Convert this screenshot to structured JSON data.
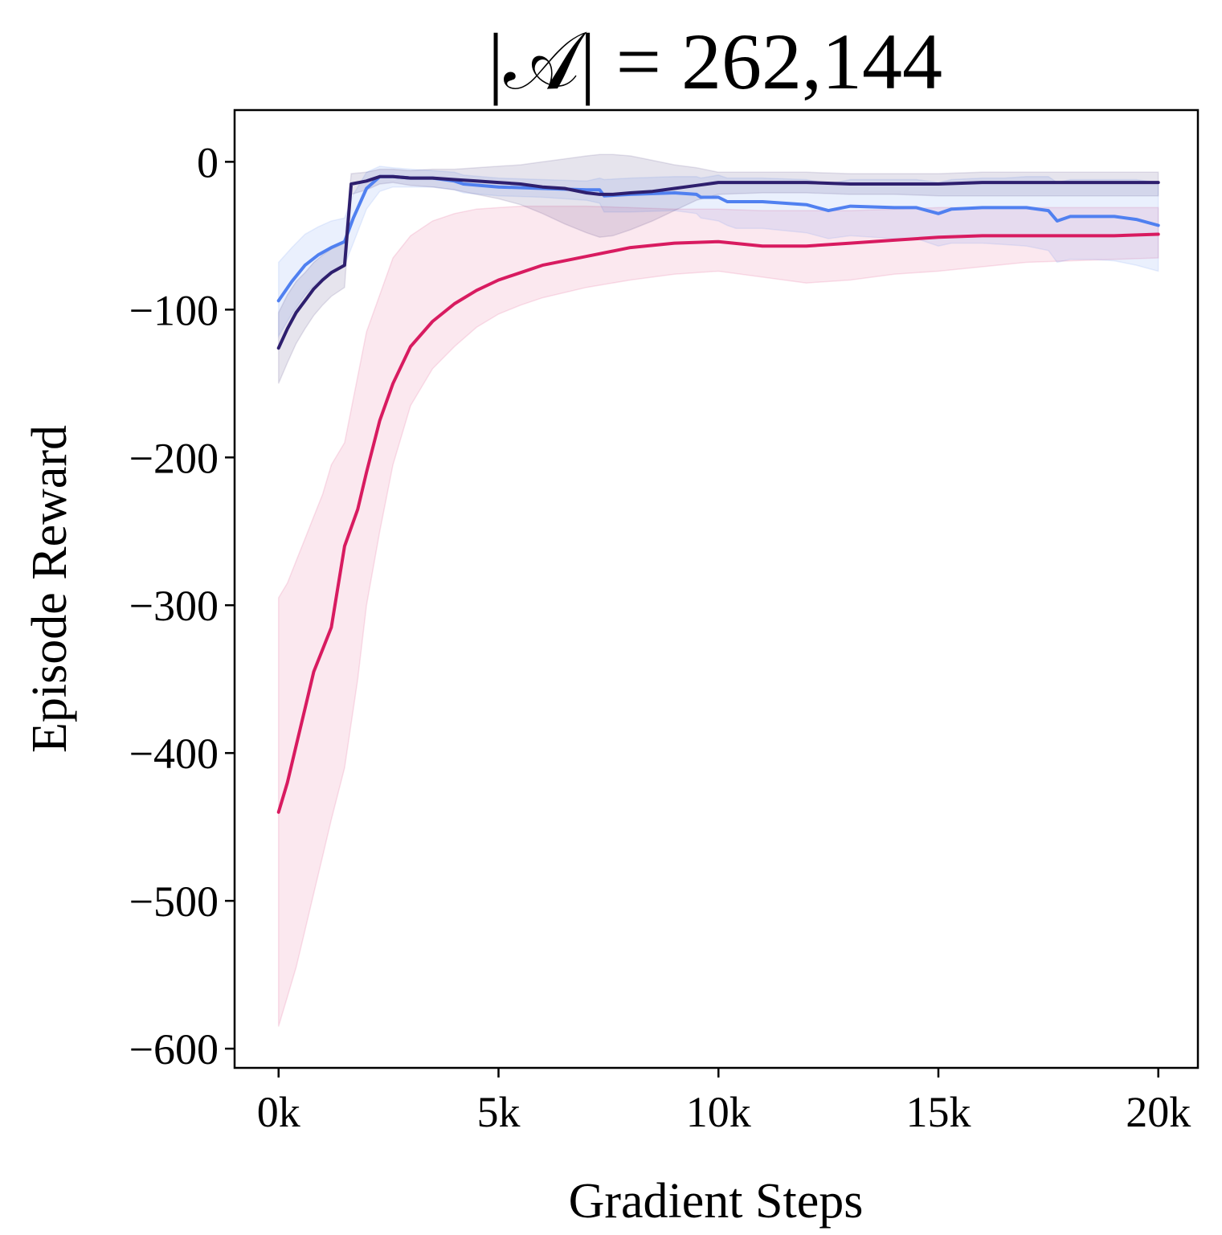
{
  "chart_data": {
    "type": "line",
    "title": "|𝒜| =  262,144",
    "xlabel": "Gradient Steps",
    "ylabel": "Episode Reward",
    "xlim": [
      -1000,
      20900
    ],
    "ylim": [
      -613,
      35
    ],
    "xticks": [
      {
        "value": 0,
        "label": "0k"
      },
      {
        "value": 5000,
        "label": "5k"
      },
      {
        "value": 10000,
        "label": "10k"
      },
      {
        "value": 15000,
        "label": "15k"
      },
      {
        "value": 20000,
        "label": "20k"
      }
    ],
    "yticks": [
      {
        "value": 0,
        "label": "0"
      },
      {
        "value": -100,
        "label": "−100"
      },
      {
        "value": -200,
        "label": "−200"
      },
      {
        "value": -300,
        "label": "−300"
      },
      {
        "value": -400,
        "label": "−400"
      },
      {
        "value": -500,
        "label": "−500"
      },
      {
        "value": -600,
        "label": "−600"
      }
    ],
    "grid": false,
    "legend": "none",
    "series": [
      {
        "color": "#d81b60",
        "fill_opacity": 0.1,
        "x": [
          0,
          200,
          400,
          600,
          800,
          1000,
          1200,
          1500,
          1800,
          2000,
          2300,
          2600,
          3000,
          3500,
          4000,
          4500,
          5000,
          5500,
          6000,
          7000,
          8000,
          9000,
          10000,
          11000,
          12000,
          13000,
          14000,
          15000,
          16000,
          17000,
          18000,
          19000,
          20000
        ],
        "y": [
          -440,
          -420,
          -395,
          -370,
          -345,
          -330,
          -315,
          -260,
          -235,
          -210,
          -175,
          -150,
          -125,
          -108,
          -96,
          -87,
          -80,
          -75,
          -70,
          -64,
          -58,
          -55,
          -54,
          -57,
          -57,
          -55,
          -53,
          -51,
          -50,
          -50,
          -50,
          -50,
          -49
        ],
        "lower": [
          -585,
          -565,
          -545,
          -520,
          -495,
          -470,
          -445,
          -410,
          -350,
          -300,
          -250,
          -205,
          -165,
          -140,
          -125,
          -112,
          -103,
          -97,
          -92,
          -85,
          -80,
          -76,
          -74,
          -78,
          -82,
          -80,
          -76,
          -74,
          -71,
          -68,
          -67,
          -66,
          -65
        ],
        "upper": [
          -295,
          -285,
          -270,
          -255,
          -240,
          -225,
          -205,
          -190,
          -145,
          -115,
          -90,
          -65,
          -50,
          -40,
          -35,
          -32,
          -31,
          -30,
          -30,
          -30,
          -31,
          -32,
          -32,
          -33,
          -33,
          -33,
          -32,
          -31,
          -31,
          -31,
          -31,
          -31,
          -31
        ]
      },
      {
        "color": "#5080f0",
        "fill_opacity": 0.12,
        "x": [
          0,
          300,
          600,
          900,
          1200,
          1500,
          1700,
          2000,
          2300,
          2600,
          3000,
          3500,
          4000,
          4200,
          5000,
          6000,
          7000,
          7300,
          7400,
          8000,
          9000,
          9500,
          9600,
          10000,
          10200,
          10400,
          11000,
          12000,
          12500,
          13000,
          14000,
          14500,
          15000,
          15300,
          16000,
          16500,
          17000,
          17500,
          17700,
          18000,
          18500,
          19000,
          19500,
          20000
        ],
        "y": [
          -94,
          -81,
          -70,
          -63,
          -58,
          -54,
          -38,
          -18,
          -10,
          -10,
          -11,
          -11,
          -13,
          -15,
          -17,
          -18,
          -19,
          -19,
          -23,
          -22,
          -21,
          -22,
          -24,
          -24,
          -27,
          -27,
          -27,
          -29,
          -33,
          -30,
          -31,
          -31,
          -35,
          -32,
          -31,
          -31,
          -31,
          -33,
          -40,
          -37,
          -37,
          -37,
          -39,
          -43
        ],
        "lower": [
          -118,
          -103,
          -90,
          -81,
          -74,
          -70,
          -55,
          -32,
          -20,
          -17,
          -17,
          -17,
          -19,
          -21,
          -23,
          -24,
          -26,
          -28,
          -34,
          -34,
          -33,
          -35,
          -38,
          -40,
          -43,
          -45,
          -45,
          -48,
          -52,
          -50,
          -52,
          -52,
          -57,
          -55,
          -55,
          -56,
          -57,
          -60,
          -68,
          -66,
          -66,
          -67,
          -70,
          -74
        ],
        "upper": [
          -68,
          -58,
          -49,
          -44,
          -40,
          -38,
          -22,
          -7,
          -3,
          -4,
          -5,
          -6,
          -7,
          -9,
          -11,
          -12,
          -13,
          -11,
          -12,
          -11,
          -10,
          -10,
          -11,
          -9,
          -11,
          -11,
          -11,
          -12,
          -15,
          -12,
          -12,
          -12,
          -14,
          -12,
          -11,
          -11,
          -10,
          -10,
          -14,
          -12,
          -12,
          -12,
          -12,
          -14
        ]
      },
      {
        "color": "#2e1f6e",
        "fill_opacity": 0.12,
        "x": [
          0,
          200,
          400,
          600,
          800,
          1000,
          1200,
          1500,
          1650,
          2000,
          2300,
          2600,
          3000,
          3500,
          4000,
          4500,
          5000,
          5500,
          6000,
          6500,
          7000,
          7300,
          7600,
          8000,
          8500,
          9000,
          9500,
          10000,
          11000,
          12000,
          13000,
          14000,
          15000,
          16000,
          17000,
          18000,
          19000,
          20000
        ],
        "y": [
          -126,
          -113,
          -102,
          -94,
          -86,
          -80,
          -75,
          -70,
          -15,
          -13,
          -10,
          -10,
          -11,
          -11,
          -12,
          -13,
          -14,
          -15,
          -17,
          -18,
          -21,
          -22,
          -22,
          -21,
          -20,
          -18,
          -16,
          -14,
          -14,
          -14,
          -15,
          -15,
          -15,
          -14,
          -14,
          -14,
          -14,
          -14
        ],
        "lower": [
          -150,
          -136,
          -123,
          -113,
          -104,
          -97,
          -91,
          -85,
          -22,
          -19,
          -15,
          -14,
          -16,
          -17,
          -19,
          -22,
          -25,
          -29,
          -35,
          -42,
          -48,
          -51,
          -50,
          -46,
          -40,
          -33,
          -26,
          -22,
          -21,
          -21,
          -22,
          -22,
          -23,
          -23,
          -23,
          -23,
          -23,
          -23
        ],
        "upper": [
          -102,
          -90,
          -81,
          -75,
          -68,
          -63,
          -59,
          -55,
          -8,
          -7,
          -5,
          -5,
          -6,
          -5,
          -5,
          -4,
          -3,
          -2,
          0,
          2,
          4,
          5,
          5,
          4,
          1,
          -2,
          -4,
          -7,
          -7,
          -7,
          -8,
          -8,
          -8,
          -7,
          -7,
          -7,
          -7,
          -7
        ]
      }
    ]
  }
}
